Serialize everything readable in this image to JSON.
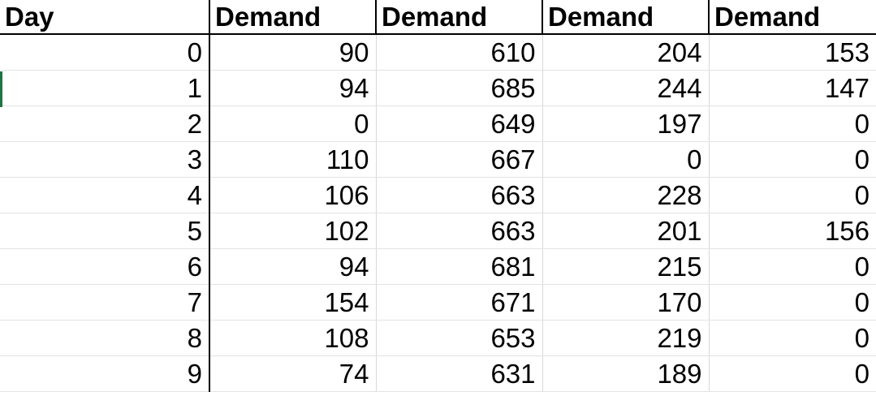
{
  "sheet": {
    "headers": [
      "Day",
      "Demand",
      "Demand",
      "Demand",
      "Demand"
    ],
    "rows": [
      [
        "0",
        "90",
        "610",
        "204",
        "153"
      ],
      [
        "1",
        "94",
        "685",
        "244",
        "147"
      ],
      [
        "2",
        "0",
        "649",
        "197",
        "0"
      ],
      [
        "3",
        "110",
        "667",
        "0",
        "0"
      ],
      [
        "4",
        "106",
        "663",
        "228",
        "0"
      ],
      [
        "5",
        "102",
        "663",
        "201",
        "156"
      ],
      [
        "6",
        "94",
        "681",
        "215",
        "0"
      ],
      [
        "7",
        "154",
        "671",
        "170",
        "0"
      ],
      [
        "8",
        "108",
        "653",
        "219",
        "0"
      ],
      [
        "9",
        "74",
        "631",
        "189",
        "0"
      ]
    ],
    "selection_color": "#217346"
  }
}
